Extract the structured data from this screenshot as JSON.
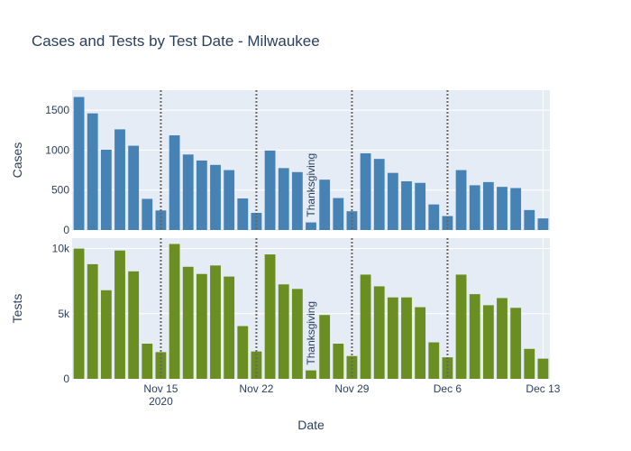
{
  "chart_data": {
    "type": "bar",
    "title": "Cases and Tests by Test Date - Milwaukee",
    "xlabel": "Date",
    "x_dates": [
      "2020-11-09",
      "2020-11-10",
      "2020-11-11",
      "2020-11-12",
      "2020-11-13",
      "2020-11-14",
      "2020-11-15",
      "2020-11-16",
      "2020-11-17",
      "2020-11-18",
      "2020-11-19",
      "2020-11-20",
      "2020-11-21",
      "2020-11-22",
      "2020-11-23",
      "2020-11-24",
      "2020-11-25",
      "2020-11-26",
      "2020-11-27",
      "2020-11-28",
      "2020-11-29",
      "2020-11-30",
      "2020-12-01",
      "2020-12-02",
      "2020-12-03",
      "2020-12-04",
      "2020-12-05",
      "2020-12-06",
      "2020-12-07",
      "2020-12-08",
      "2020-12-09",
      "2020-12-10",
      "2020-12-11",
      "2020-12-12",
      "2020-12-13"
    ],
    "x_ticks": [
      {
        "date": "2020-11-15",
        "label": "Nov 15",
        "sublabel": "2020"
      },
      {
        "date": "2020-11-22",
        "label": "Nov 22",
        "sublabel": ""
      },
      {
        "date": "2020-11-29",
        "label": "Nov 29",
        "sublabel": ""
      },
      {
        "date": "2020-12-06",
        "label": "Dec 6",
        "sublabel": ""
      },
      {
        "date": "2020-12-13",
        "label": "Dec 13",
        "sublabel": ""
      }
    ],
    "vlines": [
      "2020-11-15",
      "2020-11-22",
      "2020-11-29",
      "2020-12-06"
    ],
    "grid": true,
    "annotation": {
      "text": "Thanksgiving",
      "date": "2020-11-26",
      "rotation": -90
    },
    "panels": [
      {
        "name": "Cases",
        "ylabel": "Cases",
        "ylim": [
          0,
          1750
        ],
        "yticks": [
          {
            "value": 0,
            "label": "0"
          },
          {
            "value": 500,
            "label": "500"
          },
          {
            "value": 1000,
            "label": "1000"
          },
          {
            "value": 1500,
            "label": "1500"
          }
        ],
        "color": "#4682b4",
        "values": [
          1665,
          1460,
          1005,
          1260,
          1055,
          390,
          245,
          1185,
          945,
          870,
          815,
          750,
          395,
          215,
          995,
          775,
          725,
          95,
          630,
          400,
          235,
          960,
          890,
          715,
          610,
          590,
          320,
          175,
          750,
          560,
          600,
          540,
          525,
          250,
          145
        ]
      },
      {
        "name": "Tests",
        "ylabel": "Tests",
        "ylim": [
          0,
          10800
        ],
        "yticks": [
          {
            "value": 0,
            "label": "0"
          },
          {
            "value": 5000,
            "label": "5k"
          },
          {
            "value": 10000,
            "label": "10k"
          }
        ],
        "color": "#6b8e23",
        "values": [
          10000,
          8800,
          6800,
          9850,
          8250,
          2700,
          2050,
          10350,
          8600,
          8050,
          8700,
          7850,
          4050,
          2100,
          9550,
          7250,
          6900,
          650,
          4900,
          2700,
          1750,
          8000,
          7100,
          6250,
          6250,
          5500,
          2800,
          1650,
          8000,
          6500,
          5650,
          6200,
          5450,
          2300,
          1550
        ]
      }
    ]
  }
}
